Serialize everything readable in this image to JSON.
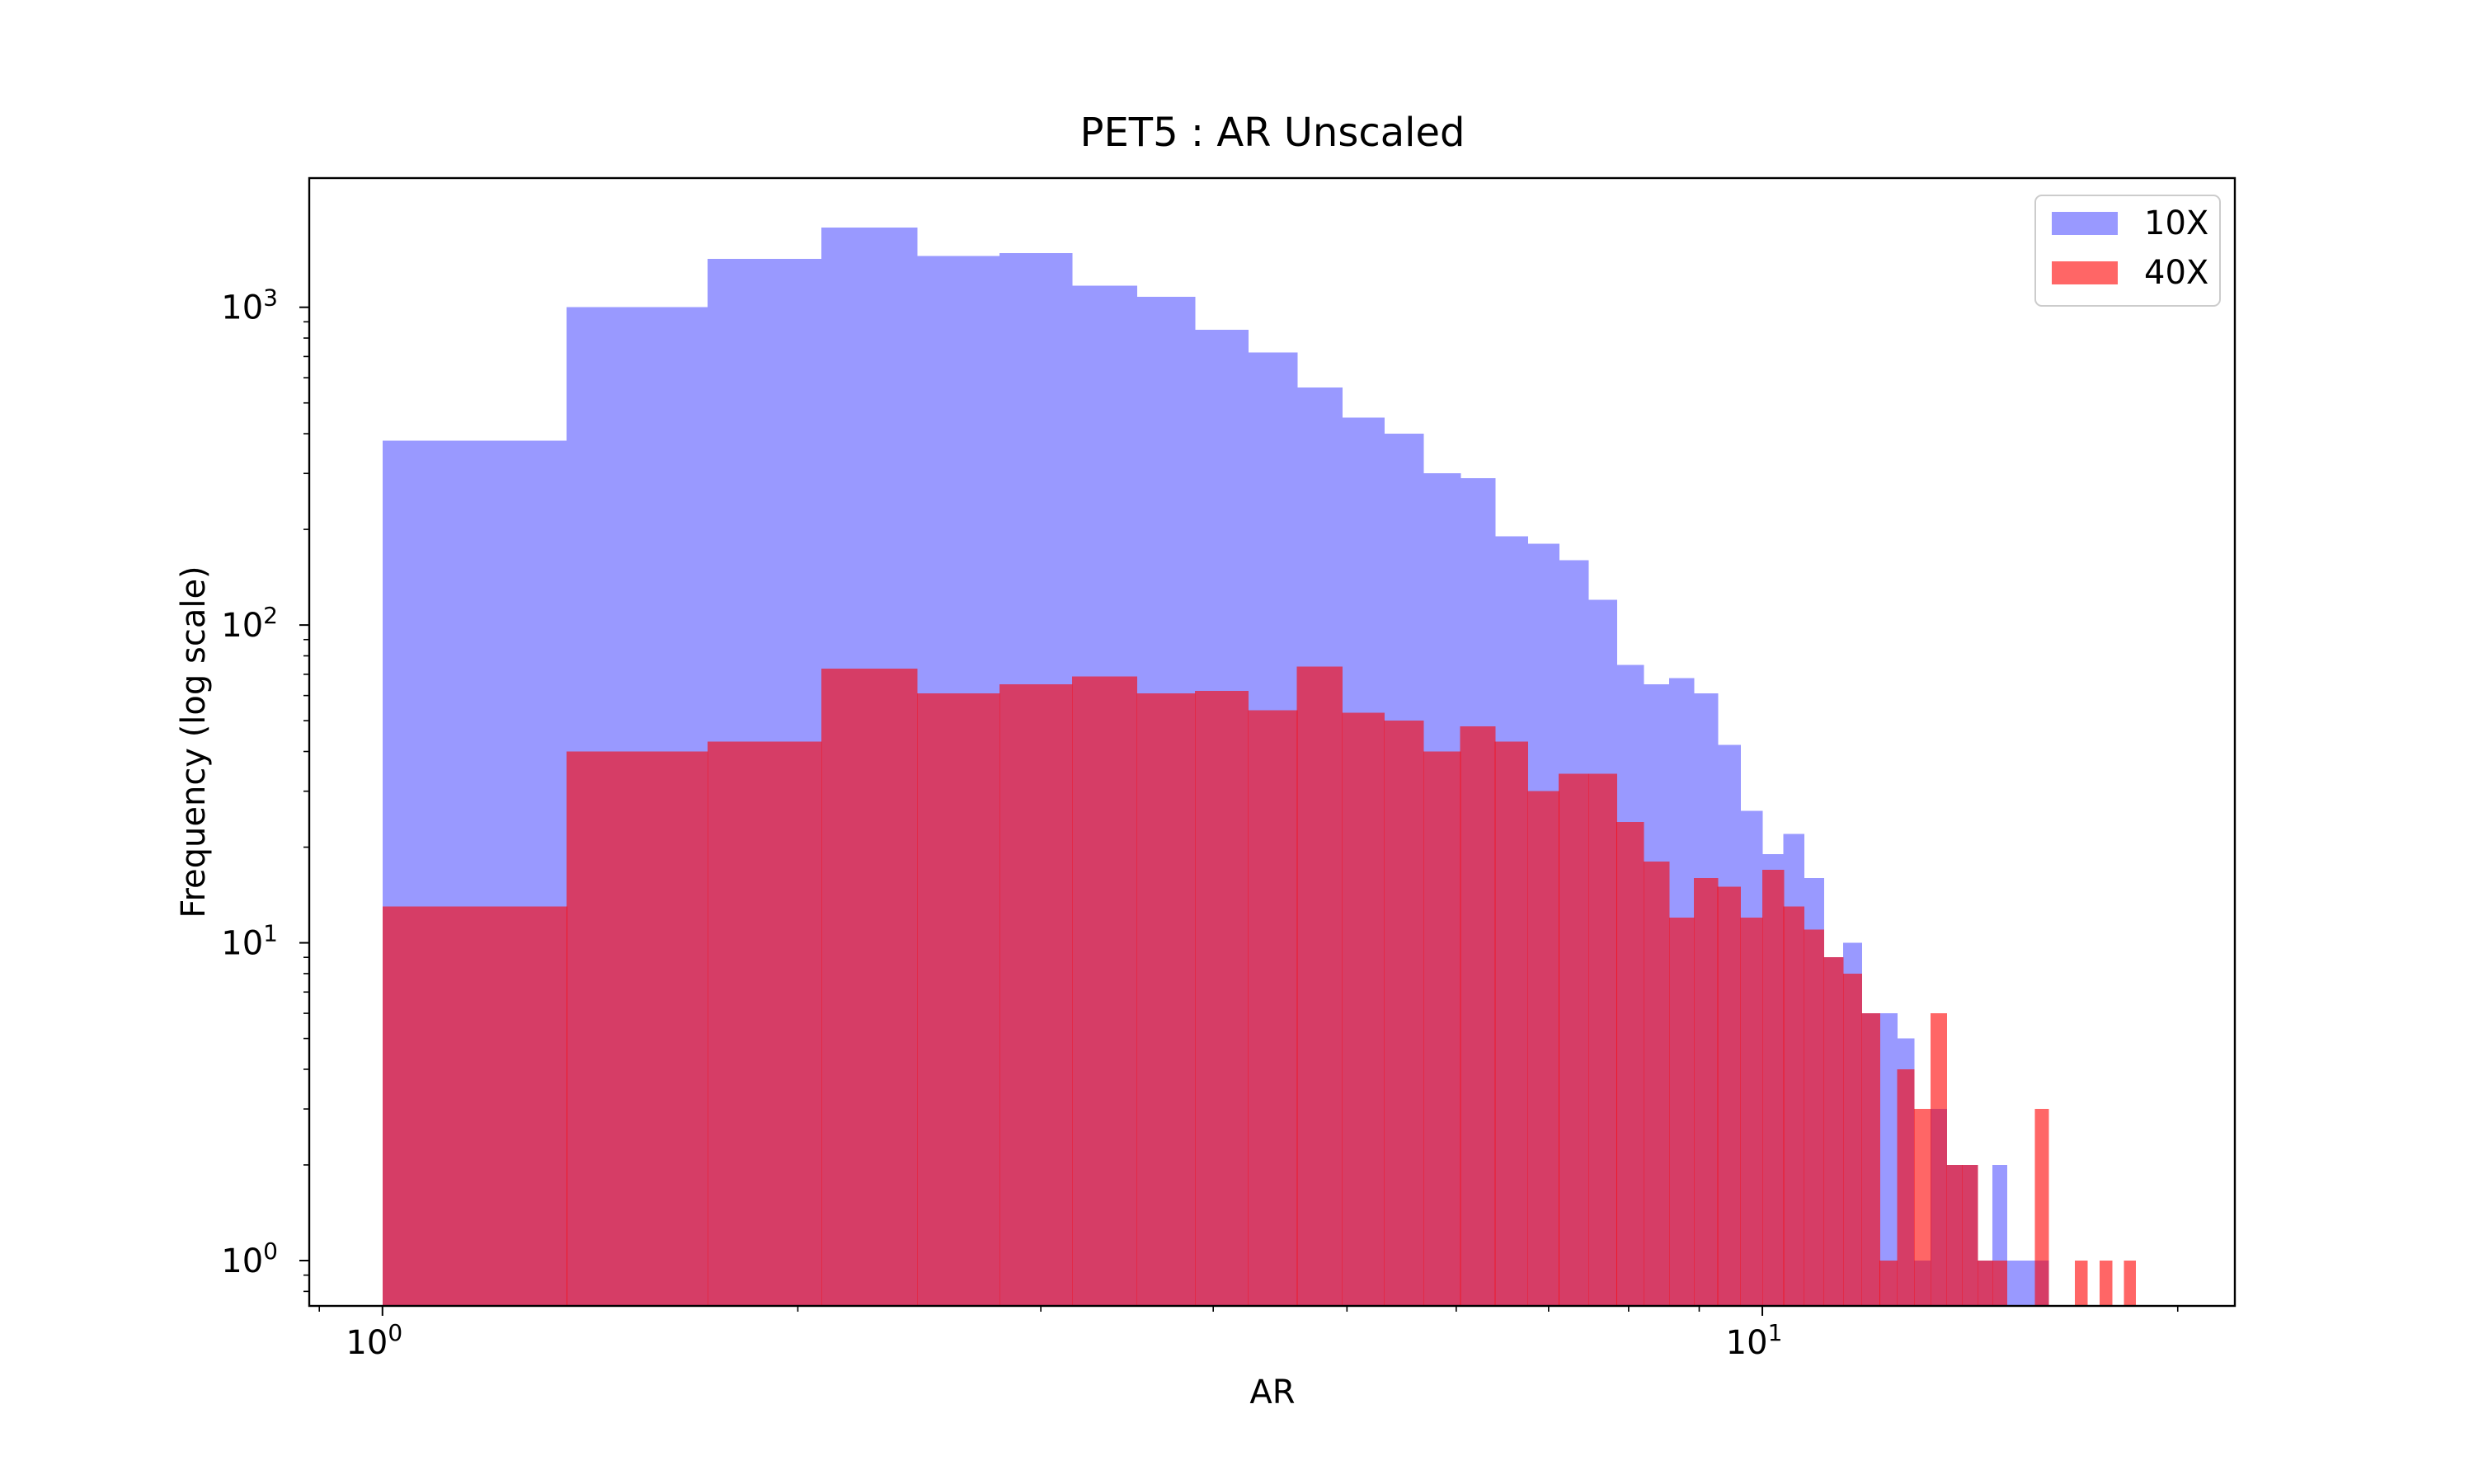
{
  "chart_data": {
    "type": "histogram",
    "title": "PET5 : AR Unscaled",
    "xlabel": "AR",
    "ylabel": "Frequency (log scale)",
    "x_scale": "log",
    "y_scale": "log",
    "xlim": [
      0.885,
      22.0
    ],
    "ylim": [
      0.72,
      2550
    ],
    "x_ticks": [
      {
        "value": 1,
        "base": "10",
        "exp": "0"
      },
      {
        "value": 10,
        "base": "10",
        "exp": "1"
      }
    ],
    "y_ticks": [
      {
        "value": 1,
        "base": "10",
        "exp": "0"
      },
      {
        "value": 10,
        "base": "10",
        "exp": "1"
      },
      {
        "value": 100,
        "base": "10",
        "exp": "2"
      },
      {
        "value": 1000,
        "base": "10",
        "exp": "3"
      }
    ],
    "legend_position": "upper right",
    "bin_range": [
      1.0,
      19.0
    ],
    "bin_count": 50,
    "series": [
      {
        "name": "10X",
        "color": "#9999ff",
        "counts": [
          380,
          1000,
          1420,
          1780,
          1450,
          1480,
          1170,
          1080,
          850,
          720,
          560,
          450,
          400,
          300,
          290,
          190,
          180,
          160,
          120,
          75,
          65,
          68,
          61,
          42,
          26,
          19,
          22,
          16,
          9,
          10,
          6,
          6,
          5,
          1,
          3,
          2,
          2,
          1,
          2,
          1,
          1,
          1,
          0,
          0,
          0,
          0,
          0,
          0,
          0,
          0
        ]
      },
      {
        "name": "40X",
        "color": "#ff6666",
        "counts": [
          13,
          40,
          43,
          73,
          61,
          65,
          69,
          61,
          62,
          54,
          74,
          53,
          50,
          40,
          48,
          43,
          30,
          34,
          34,
          24,
          18,
          12,
          16,
          15,
          12,
          17,
          13,
          11,
          9,
          8,
          6,
          1,
          4,
          3,
          6,
          2,
          2,
          1,
          1,
          0,
          0,
          3,
          0,
          0,
          1,
          0,
          1,
          0,
          1,
          0
        ]
      }
    ]
  }
}
